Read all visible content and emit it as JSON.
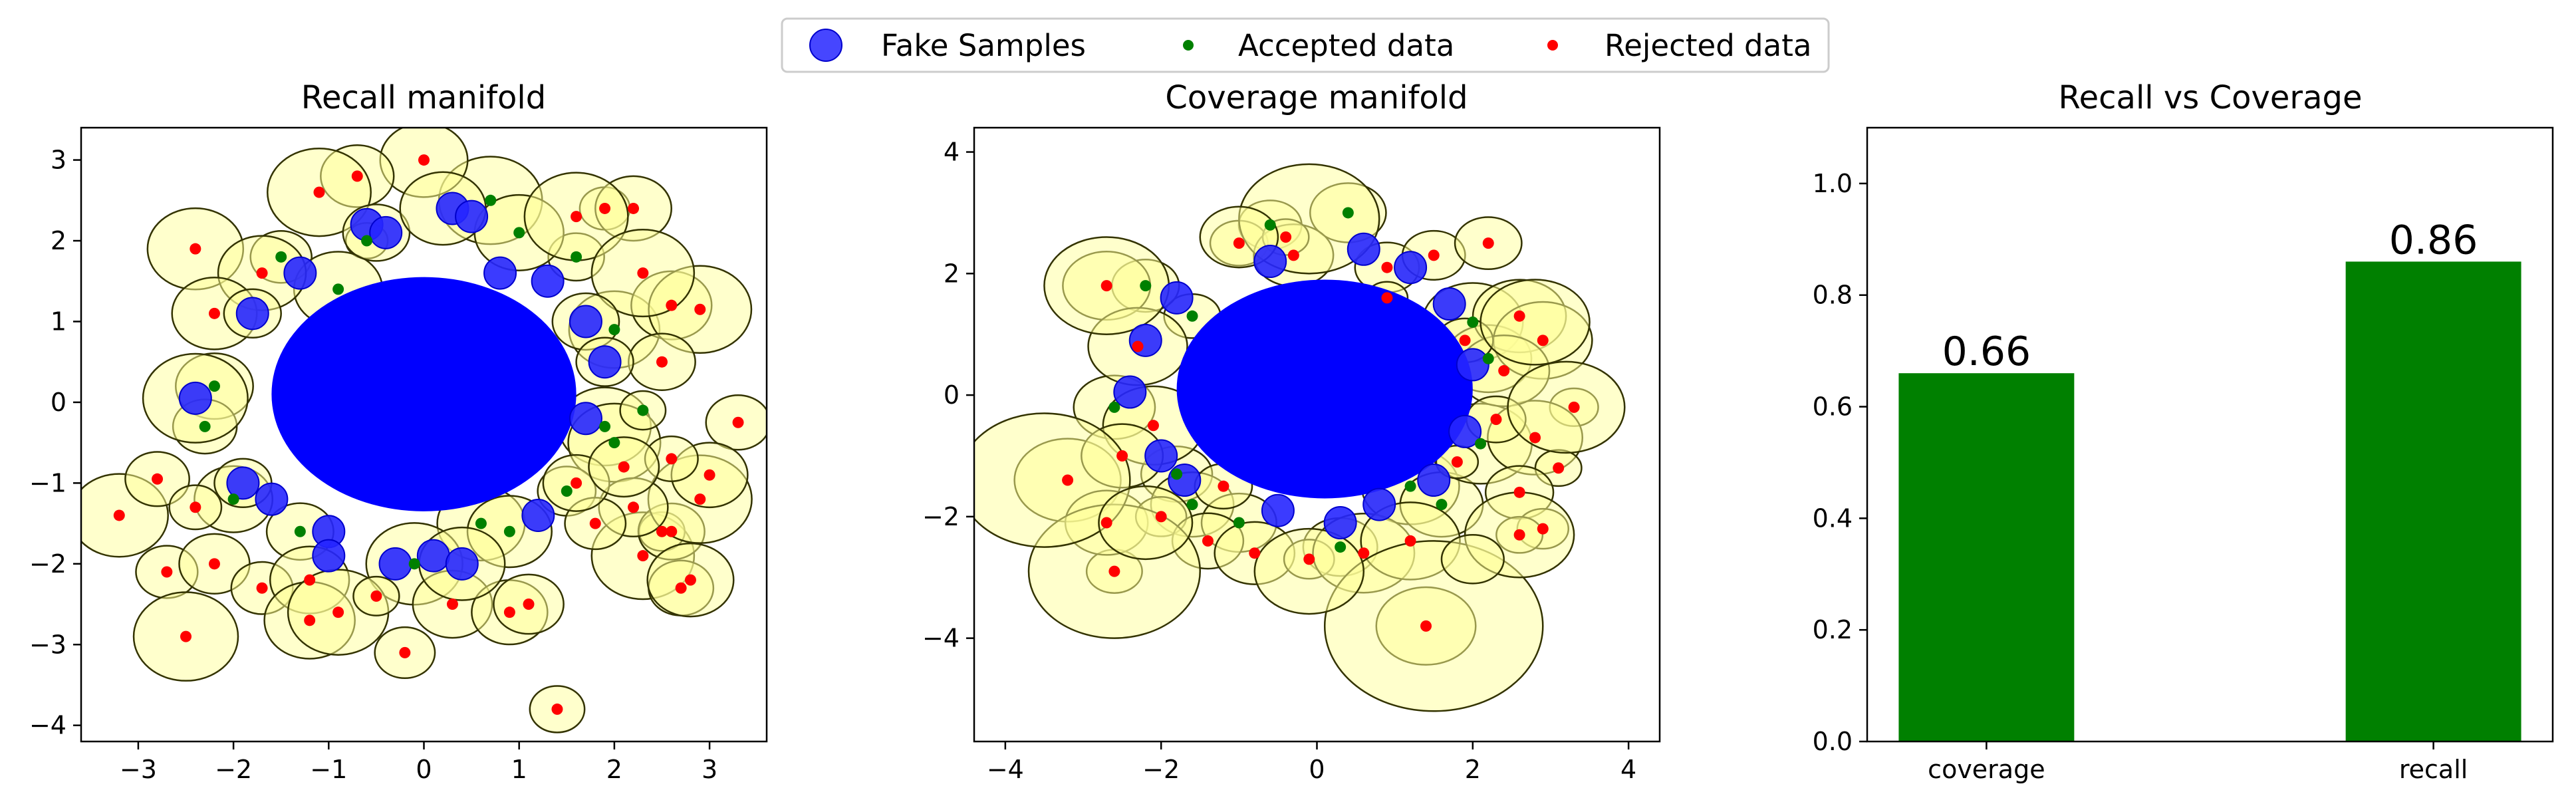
{
  "legend": {
    "entries": [
      {
        "label": "Fake Samples",
        "color": "#2626ff"
      },
      {
        "label": "Accepted data",
        "color": "#008000"
      },
      {
        "label": "Rejected data",
        "color": "#ff0000"
      }
    ]
  },
  "chart_data": [
    {
      "type": "scatter",
      "title": "Recall manifold",
      "xlim": [
        -3.6,
        3.6
      ],
      "ylim": [
        -4.2,
        3.4
      ],
      "xticks": [
        "−3",
        "−2",
        "−1",
        "0",
        "1",
        "2",
        "3"
      ],
      "yticks": [
        "−4",
        "−3",
        "−2",
        "−1",
        "0",
        "1",
        "2",
        "3"
      ],
      "fake_cloud": {
        "center": [
          0,
          0.1
        ],
        "radius": [
          1.6,
          1.45
        ],
        "color": "#0000ff"
      },
      "fake_samples": [
        [
          -0.6,
          2.2
        ],
        [
          0.3,
          2.4
        ],
        [
          -0.4,
          2.1
        ],
        [
          0.5,
          2.3
        ],
        [
          1.3,
          1.5
        ],
        [
          -1.8,
          1.1
        ],
        [
          -2.4,
          0.05
        ],
        [
          1.7,
          1.0
        ],
        [
          1.9,
          0.5
        ],
        [
          1.7,
          -0.2
        ],
        [
          -1.9,
          -1.0
        ],
        [
          -1.6,
          -1.2
        ],
        [
          -1.0,
          -1.6
        ],
        [
          -0.3,
          -2.0
        ],
        [
          0.1,
          -1.9
        ],
        [
          0.4,
          -2.0
        ],
        [
          1.2,
          -1.4
        ],
        [
          -1.3,
          1.6
        ],
        [
          -1.0,
          -1.9
        ],
        [
          0.8,
          1.6
        ]
      ],
      "accepted": [
        [
          -0.6,
          2.0
        ],
        [
          0.7,
          2.5
        ],
        [
          -1.5,
          1.8
        ],
        [
          1.6,
          1.8
        ],
        [
          2.0,
          0.9
        ],
        [
          -2.2,
          0.2
        ],
        [
          -2.3,
          -0.3
        ],
        [
          1.9,
          -0.3
        ],
        [
          2.0,
          -0.5
        ],
        [
          -2.0,
          -1.2
        ],
        [
          0.6,
          -1.5
        ],
        [
          0.9,
          -1.6
        ],
        [
          -0.1,
          -2.0
        ],
        [
          1.5,
          -1.1
        ],
        [
          -1.3,
          -1.6
        ],
        [
          1.0,
          2.1
        ],
        [
          -0.9,
          1.4
        ],
        [
          2.3,
          -0.1
        ]
      ],
      "rejected": [
        [
          0,
          3.0
        ],
        [
          -0.7,
          2.8
        ],
        [
          -1.1,
          2.6
        ],
        [
          -2.4,
          1.9
        ],
        [
          1.9,
          2.4
        ],
        [
          2.2,
          2.4
        ],
        [
          1.6,
          2.3
        ],
        [
          -1.7,
          1.6
        ],
        [
          -2.2,
          1.1
        ],
        [
          2.6,
          1.2
        ],
        [
          2.9,
          1.15
        ],
        [
          2.3,
          1.6
        ],
        [
          2.5,
          0.5
        ],
        [
          3.3,
          -0.25
        ],
        [
          -3.2,
          -1.4
        ],
        [
          -2.8,
          -0.95
        ],
        [
          -2.4,
          -1.3
        ],
        [
          -2.7,
          -2.1
        ],
        [
          -2.2,
          -2.0
        ],
        [
          -1.7,
          -2.3
        ],
        [
          -2.5,
          -2.9
        ],
        [
          -1.2,
          -2.2
        ],
        [
          -1.2,
          -2.7
        ],
        [
          -0.9,
          -2.6
        ],
        [
          -0.5,
          -2.4
        ],
        [
          -0.2,
          -3.1
        ],
        [
          0.3,
          -2.5
        ],
        [
          0.9,
          -2.6
        ],
        [
          1.1,
          -2.5
        ],
        [
          1.4,
          -3.8
        ],
        [
          2.3,
          -1.9
        ],
        [
          2.5,
          -1.6
        ],
        [
          2.6,
          -1.6
        ],
        [
          2.7,
          -2.3
        ],
        [
          2.8,
          -2.2
        ],
        [
          2.9,
          -1.2
        ],
        [
          3.0,
          -0.9
        ],
        [
          2.6,
          -0.7
        ],
        [
          2.2,
          -1.3
        ],
        [
          1.8,
          -1.5
        ],
        [
          1.6,
          -1.0
        ],
        [
          2.1,
          -0.8
        ]
      ]
    },
    {
      "type": "scatter",
      "title": "Coverage manifold",
      "xlim": [
        -4.4,
        4.4
      ],
      "ylim": [
        -5.7,
        4.4
      ],
      "xticks": [
        "−4",
        "−2",
        "0",
        "2",
        "4"
      ],
      "yticks": [
        "−4",
        "−2",
        "0",
        "2",
        "4"
      ],
      "fake_cloud": {
        "center": [
          0.1,
          0.1
        ],
        "radius": [
          1.9,
          1.8
        ],
        "color": "#0000ff"
      },
      "fake_samples": [
        [
          -2.4,
          0.05
        ],
        [
          -0.6,
          2.2
        ],
        [
          0.6,
          2.4
        ],
        [
          1.2,
          2.1
        ],
        [
          -1.8,
          1.6
        ],
        [
          1.7,
          1.5
        ],
        [
          -2.0,
          -1.0
        ],
        [
          -1.7,
          -1.4
        ],
        [
          -0.5,
          -1.9
        ],
        [
          0.8,
          -1.8
        ],
        [
          1.5,
          -1.4
        ],
        [
          2.0,
          0.5
        ],
        [
          1.9,
          -0.6
        ],
        [
          -2.2,
          0.9
        ],
        [
          0.3,
          -2.1
        ]
      ],
      "accepted": [
        [
          -0.6,
          2.8
        ],
        [
          0.4,
          3.0
        ],
        [
          -2.6,
          -0.2
        ],
        [
          -1.6,
          1.3
        ],
        [
          2.0,
          1.2
        ],
        [
          -1.8,
          -1.3
        ],
        [
          1.2,
          -1.5
        ],
        [
          1.6,
          -1.8
        ],
        [
          -1.6,
          -1.8
        ],
        [
          -1.0,
          -2.1
        ],
        [
          0.3,
          -2.5
        ],
        [
          2.2,
          0.6
        ],
        [
          2.1,
          -0.8
        ],
        [
          -2.2,
          1.8
        ]
      ],
      "rejected": [
        [
          -2.7,
          1.8
        ],
        [
          -1.0,
          2.5
        ],
        [
          -0.3,
          2.3
        ],
        [
          0.9,
          2.1
        ],
        [
          1.5,
          2.3
        ],
        [
          2.2,
          2.5
        ],
        [
          2.6,
          1.3
        ],
        [
          2.9,
          0.9
        ],
        [
          3.3,
          -0.2
        ],
        [
          2.8,
          -0.7
        ],
        [
          3.1,
          -1.2
        ],
        [
          2.6,
          -1.6
        ],
        [
          2.9,
          -2.2
        ],
        [
          2.6,
          -2.3
        ],
        [
          -3.2,
          -1.4
        ],
        [
          -2.6,
          -2.9
        ],
        [
          -2.7,
          -2.1
        ],
        [
          -2.0,
          -2.0
        ],
        [
          -1.4,
          -2.4
        ],
        [
          -0.8,
          -2.6
        ],
        [
          -0.1,
          -2.7
        ],
        [
          0.6,
          -2.6
        ],
        [
          1.2,
          -2.4
        ],
        [
          1.4,
          -3.8
        ],
        [
          -2.3,
          0.8
        ],
        [
          -2.1,
          -0.5
        ],
        [
          2.4,
          0.4
        ],
        [
          2.3,
          -0.4
        ],
        [
          1.8,
          -1.1
        ],
        [
          -1.2,
          -1.5
        ],
        [
          -0.4,
          2.6
        ],
        [
          0.9,
          1.6
        ],
        [
          -2.5,
          -1.0
        ],
        [
          1.9,
          0.9
        ]
      ]
    },
    {
      "type": "bar",
      "title": "Recall vs Coverage",
      "categories": [
        "coverage",
        "recall"
      ],
      "values": [
        0.66,
        0.86
      ],
      "value_labels": [
        "0.66",
        "0.86"
      ],
      "ylim": [
        0,
        1.1
      ],
      "yticks": [
        "0.0",
        "0.2",
        "0.4",
        "0.6",
        "0.8",
        "1.0"
      ],
      "bar_color": "#008000"
    }
  ]
}
